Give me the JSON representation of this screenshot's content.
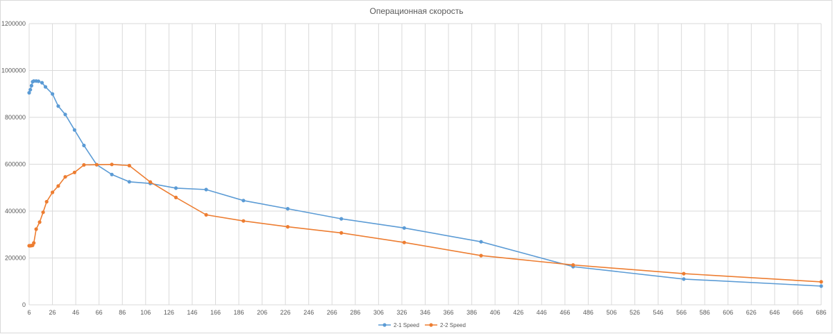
{
  "chart_data": {
    "type": "line",
    "title": "Операционная скорость",
    "xlabel": "",
    "ylabel": "",
    "xlim": [
      6,
      686
    ],
    "ylim": [
      0,
      1200000
    ],
    "x_ticks": [
      "6",
      "26",
      "46",
      "66",
      "86",
      "106",
      "126",
      "146",
      "166",
      "186",
      "206",
      "226",
      "246",
      "266",
      "286",
      "306",
      "326",
      "346",
      "366",
      "386",
      "406",
      "426",
      "446",
      "466",
      "486",
      "506",
      "526",
      "546",
      "566",
      "586",
      "606",
      "626",
      "646",
      "666",
      "686"
    ],
    "y_ticks": [
      "0",
      "200000",
      "400000",
      "600000",
      "800000",
      "1000000",
      "1200000"
    ],
    "grid": true,
    "legend_position": "bottom",
    "series": [
      {
        "name": "2-1 Speed",
        "color": "#5b9bd5",
        "points": [
          [
            6,
            905000
          ],
          [
            7,
            918000
          ],
          [
            8,
            935000
          ],
          [
            9,
            952000
          ],
          [
            10,
            955000
          ],
          [
            12,
            955000
          ],
          [
            14,
            954000
          ],
          [
            17,
            948000
          ],
          [
            20,
            930000
          ],
          [
            26,
            900000
          ],
          [
            31,
            848000
          ],
          [
            37,
            812000
          ],
          [
            45,
            746000
          ],
          [
            53,
            680000
          ],
          [
            64,
            598000
          ],
          [
            77,
            556000
          ],
          [
            92,
            525000
          ],
          [
            110,
            518000
          ],
          [
            132,
            498000
          ],
          [
            158,
            492000
          ],
          [
            190,
            445000
          ],
          [
            228,
            410000
          ],
          [
            274,
            367000
          ],
          [
            328,
            328000
          ],
          [
            394,
            269000
          ],
          [
            473,
            163000
          ],
          [
            568,
            110000
          ],
          [
            686,
            80000
          ]
        ]
      },
      {
        "name": "2-2 Speed",
        "color": "#ed7d31",
        "points": [
          [
            6,
            252000
          ],
          [
            7,
            252000
          ],
          [
            8,
            253000
          ],
          [
            9,
            254000
          ],
          [
            10,
            264000
          ],
          [
            12,
            323000
          ],
          [
            15,
            353000
          ],
          [
            18,
            395000
          ],
          [
            21,
            440000
          ],
          [
            26,
            480000
          ],
          [
            31,
            507000
          ],
          [
            37,
            546000
          ],
          [
            45,
            565000
          ],
          [
            53,
            597000
          ],
          [
            64,
            598000
          ],
          [
            77,
            599000
          ],
          [
            92,
            594000
          ],
          [
            110,
            524000
          ],
          [
            132,
            458000
          ],
          [
            158,
            384000
          ],
          [
            190,
            358000
          ],
          [
            228,
            333000
          ],
          [
            274,
            307000
          ],
          [
            328,
            266000
          ],
          [
            394,
            210000
          ],
          [
            473,
            170000
          ],
          [
            568,
            133000
          ],
          [
            686,
            98000
          ]
        ]
      }
    ]
  }
}
